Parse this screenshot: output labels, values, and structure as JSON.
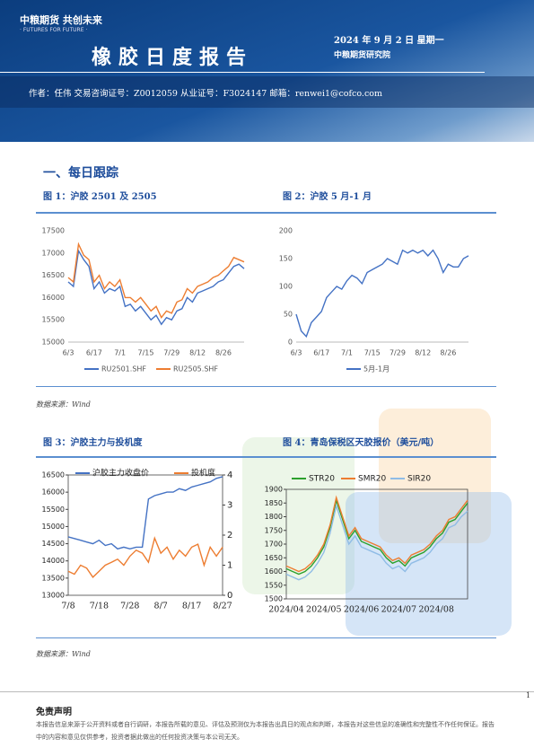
{
  "header": {
    "brand": "中粮期货 共创未来",
    "slogan": "· FUTURES FOR FUTURE ·",
    "title": "橡胶日度报告",
    "date": "2024 年 9 月 2 日 星期一",
    "institute": "中粮期货研究院",
    "author": "作者：任伟   交易咨询证号：Z0012059   从业证号：F3024147   邮箱：renwei1@cofco.com"
  },
  "section": "一、每日跟踪",
  "figures": [
    "图 1：沪胶 2501 及 2505",
    "图 2：沪胶 5 月-1 月",
    "图 3：沪胶主力与投机度",
    "图 4：青岛保税区天胶报价（美元/吨）"
  ],
  "sources": [
    "数据来源：Wind",
    "数据来源：Wind"
  ],
  "disclaimer": {
    "title": "免责声明",
    "text": "本报告信息来源于公开资料或者自行调研，本报告所载的意见、评估及预测仅为本报告出具日的观点和判断，本报告对这些信息的准确性和完整性不作任何保证。报告中的内容和意见仅供参考，投资者据此做出的任何投资决策与本公司无关。"
  },
  "page_number": "1",
  "chart_data": [
    {
      "type": "line",
      "legend": "bottom",
      "categories": [
        "6/3",
        null,
        null,
        null,
        null,
        "6/17",
        null,
        null,
        null,
        null,
        "7/1",
        null,
        null,
        null,
        null,
        "7/15",
        null,
        null,
        null,
        null,
        "7/29",
        null,
        null,
        null,
        null,
        "8/12",
        null,
        null,
        null,
        null,
        "8/26",
        null,
        null,
        null,
        null
      ],
      "ylim": [
        15000,
        17500
      ],
      "yticks": [
        15000,
        15500,
        16000,
        16500,
        17000,
        17500
      ],
      "series": [
        {
          "name": "RU2501.SHF",
          "color": "#4472c4",
          "values": [
            16350,
            16250,
            17050,
            16850,
            16700,
            16200,
            16350,
            16100,
            16200,
            16150,
            16250,
            15800,
            15850,
            15700,
            15800,
            15650,
            15500,
            15600,
            15400,
            15550,
            15500,
            15700,
            15750,
            16000,
            15900,
            16100,
            16150,
            16200,
            16250,
            16350,
            16400,
            16550,
            16700,
            16750,
            16650
          ]
        },
        {
          "name": "RU2505.SHF",
          "color": "#ed7d31",
          "values": [
            16450,
            16350,
            17200,
            16950,
            16850,
            16350,
            16500,
            16200,
            16350,
            16250,
            16400,
            16000,
            16000,
            15900,
            16000,
            15850,
            15700,
            15800,
            15550,
            15700,
            15650,
            15900,
            15950,
            16200,
            16100,
            16250,
            16300,
            16350,
            16450,
            16500,
            16600,
            16700,
            16900,
            16850,
            16800
          ]
        }
      ]
    },
    {
      "type": "line",
      "legend": "bottom",
      "categories": [
        "6/3",
        null,
        null,
        null,
        null,
        "6/17",
        null,
        null,
        null,
        null,
        "7/1",
        null,
        null,
        null,
        null,
        "7/15",
        null,
        null,
        null,
        null,
        "7/29",
        null,
        null,
        null,
        null,
        "8/12",
        null,
        null,
        null,
        null,
        "8/26",
        null,
        null,
        null,
        null
      ],
      "ylim": [
        0,
        200
      ],
      "yticks": [
        0,
        50,
        100,
        150,
        200
      ],
      "series": [
        {
          "name": "5月-1月",
          "color": "#4472c4",
          "values": [
            50,
            20,
            10,
            35,
            45,
            55,
            80,
            90,
            100,
            95,
            110,
            120,
            115,
            105,
            125,
            130,
            135,
            140,
            150,
            145,
            140,
            165,
            160,
            165,
            160,
            165,
            155,
            165,
            150,
            125,
            140,
            135,
            135,
            150,
            155
          ]
        }
      ]
    },
    {
      "type": "line",
      "legend": "top",
      "categories": [
        "7/8",
        null,
        null,
        null,
        null,
        "7/18",
        null,
        null,
        null,
        null,
        "7/28",
        null,
        null,
        null,
        null,
        "8/7",
        null,
        null,
        null,
        null,
        "8/17",
        null,
        null,
        null,
        null,
        "8/27"
      ],
      "ylim": [
        13000,
        16500
      ],
      "yticks": [
        13000,
        13500,
        14000,
        14500,
        15000,
        15500,
        16000,
        16500
      ],
      "y2lim": [
        0,
        4
      ],
      "y2ticks": [
        0,
        1,
        2,
        3,
        4
      ],
      "series": [
        {
          "name": "沪胶主力收盘价",
          "color": "#4472c4",
          "values": [
            14700,
            14650,
            14600,
            14550,
            14500,
            14600,
            14450,
            14500,
            14350,
            14400,
            14350,
            14400,
            14400,
            15800,
            15900,
            15950,
            16000,
            16000,
            16100,
            16050,
            16150,
            16200,
            16250,
            16300,
            16400,
            16450
          ]
        },
        {
          "name": "投机度",
          "color": "#ed7d31",
          "axis": "y2",
          "values": [
            0.8,
            0.7,
            1.0,
            0.9,
            0.6,
            0.8,
            1.0,
            1.1,
            1.2,
            1.0,
            1.3,
            1.5,
            1.4,
            1.1,
            1.9,
            1.4,
            1.6,
            1.2,
            1.5,
            1.3,
            1.6,
            1.7,
            1.0,
            1.6,
            1.3,
            1.6
          ]
        }
      ]
    },
    {
      "type": "line",
      "legend": "top",
      "categories": [
        "2024/04",
        null,
        null,
        null,
        null,
        null,
        "2024/05",
        null,
        null,
        null,
        null,
        null,
        "2024/06",
        null,
        null,
        null,
        null,
        null,
        "2024/07",
        null,
        null,
        null,
        null,
        null,
        "2024/08",
        null,
        null,
        null,
        null,
        null
      ],
      "ylim": [
        1500,
        1900
      ],
      "yticks": [
        1500,
        1550,
        1600,
        1650,
        1700,
        1750,
        1800,
        1850,
        1900
      ],
      "series": [
        {
          "name": "STR20",
          "color": "#2ca02c",
          "values": [
            1610,
            1600,
            1590,
            1600,
            1620,
            1650,
            1690,
            1760,
            1860,
            1790,
            1720,
            1750,
            1710,
            1700,
            1690,
            1680,
            1650,
            1630,
            1640,
            1620,
            1650,
            1660,
            1670,
            1690,
            1720,
            1740,
            1780,
            1790,
            1820,
            1850
          ]
        },
        {
          "name": "SMR20",
          "color": "#ed7d31",
          "values": [
            1620,
            1610,
            1600,
            1610,
            1630,
            1660,
            1700,
            1770,
            1870,
            1800,
            1730,
            1760,
            1720,
            1710,
            1700,
            1690,
            1660,
            1640,
            1650,
            1630,
            1660,
            1670,
            1680,
            1700,
            1730,
            1750,
            1790,
            1800,
            1830,
            1860
          ]
        },
        {
          "name": "SIR20",
          "color": "#8fbce6",
          "values": [
            1590,
            1580,
            1570,
            1580,
            1600,
            1630,
            1670,
            1740,
            1840,
            1770,
            1700,
            1730,
            1690,
            1680,
            1670,
            1660,
            1630,
            1610,
            1620,
            1600,
            1630,
            1640,
            1650,
            1670,
            1700,
            1720,
            1760,
            1770,
            1800,
            1820
          ]
        }
      ]
    }
  ]
}
